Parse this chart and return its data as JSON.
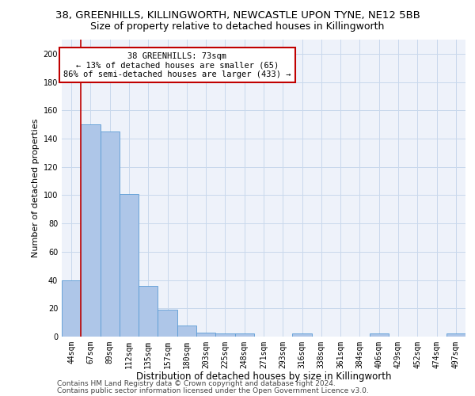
{
  "title1": "38, GREENHILLS, KILLINGWORTH, NEWCASTLE UPON TYNE, NE12 5BB",
  "title2": "Size of property relative to detached houses in Killingworth",
  "xlabel": "Distribution of detached houses by size in Killingworth",
  "ylabel": "Number of detached properties",
  "categories": [
    "44sqm",
    "67sqm",
    "89sqm",
    "112sqm",
    "135sqm",
    "157sqm",
    "180sqm",
    "203sqm",
    "225sqm",
    "248sqm",
    "271sqm",
    "293sqm",
    "316sqm",
    "338sqm",
    "361sqm",
    "384sqm",
    "406sqm",
    "429sqm",
    "452sqm",
    "474sqm",
    "497sqm"
  ],
  "values": [
    40,
    150,
    145,
    101,
    36,
    19,
    8,
    3,
    2,
    2,
    0,
    0,
    2,
    0,
    0,
    0,
    2,
    0,
    0,
    0,
    2
  ],
  "bar_color": "#aec6e8",
  "bar_edge_color": "#5b9bd5",
  "vline_color": "#c00000",
  "annotation_text": "38 GREENHILLS: 73sqm\n← 13% of detached houses are smaller (65)\n86% of semi-detached houses are larger (433) →",
  "annotation_box_color": "#ffffff",
  "annotation_box_edge": "#c00000",
  "ylim": [
    0,
    210
  ],
  "yticks": [
    0,
    20,
    40,
    60,
    80,
    100,
    120,
    140,
    160,
    180,
    200
  ],
  "bg_color": "#eef2fa",
  "footer1": "Contains HM Land Registry data © Crown copyright and database right 2024.",
  "footer2": "Contains public sector information licensed under the Open Government Licence v3.0.",
  "title1_fontsize": 9.5,
  "title2_fontsize": 9,
  "xlabel_fontsize": 8.5,
  "ylabel_fontsize": 8,
  "tick_fontsize": 7,
  "footer_fontsize": 6.5,
  "ann_fontsize": 7.5
}
